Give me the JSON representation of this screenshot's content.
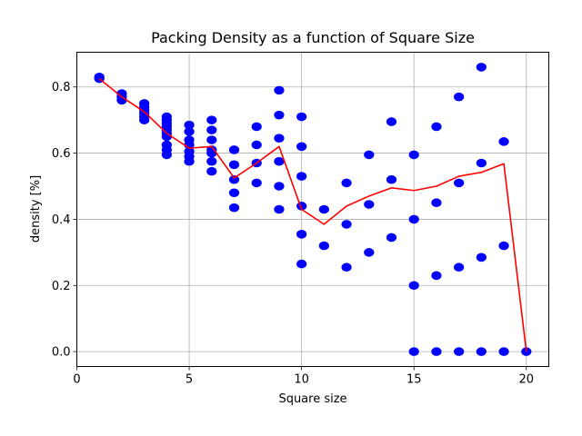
{
  "chart_data": {
    "type": "scatter",
    "title": "Packing Density as a function of Square Size",
    "xlabel": "Square size",
    "ylabel": "density [%]",
    "xlim": [
      0,
      21
    ],
    "ylim": [
      -0.045,
      0.905
    ],
    "xticks": [
      0,
      5,
      10,
      15,
      20
    ],
    "yticks": [
      0.0,
      0.2,
      0.4,
      0.6,
      0.8
    ],
    "grid": true,
    "legend": "none",
    "series": [
      {
        "kind": "scatter",
        "color": "#0000ff",
        "points": [
          [
            1,
            0.83
          ],
          [
            1,
            0.825
          ],
          [
            2,
            0.78
          ],
          [
            2,
            0.77
          ],
          [
            2,
            0.76
          ],
          [
            3,
            0.75
          ],
          [
            3,
            0.74
          ],
          [
            3,
            0.73
          ],
          [
            3,
            0.72
          ],
          [
            3,
            0.71
          ],
          [
            3,
            0.7
          ],
          [
            4,
            0.71
          ],
          [
            4,
            0.7
          ],
          [
            4,
            0.69
          ],
          [
            4,
            0.68
          ],
          [
            4,
            0.67
          ],
          [
            4,
            0.66
          ],
          [
            4,
            0.65
          ],
          [
            4,
            0.625
          ],
          [
            4,
            0.61
          ],
          [
            4,
            0.595
          ],
          [
            5,
            0.685
          ],
          [
            5,
            0.665
          ],
          [
            5,
            0.64
          ],
          [
            5,
            0.625
          ],
          [
            5,
            0.605
          ],
          [
            5,
            0.59
          ],
          [
            5,
            0.575
          ],
          [
            6,
            0.7
          ],
          [
            6,
            0.67
          ],
          [
            6,
            0.64
          ],
          [
            6,
            0.61
          ],
          [
            6,
            0.6
          ],
          [
            6,
            0.575
          ],
          [
            6,
            0.545
          ],
          [
            7,
            0.61
          ],
          [
            7,
            0.565
          ],
          [
            7,
            0.52
          ],
          [
            7,
            0.48
          ],
          [
            7,
            0.435
          ],
          [
            8,
            0.68
          ],
          [
            8,
            0.625
          ],
          [
            8,
            0.57
          ],
          [
            8,
            0.51
          ],
          [
            9,
            0.79
          ],
          [
            9,
            0.715
          ],
          [
            9,
            0.645
          ],
          [
            9,
            0.575
          ],
          [
            9,
            0.5
          ],
          [
            9,
            0.43
          ],
          [
            10,
            0.71
          ],
          [
            10,
            0.62
          ],
          [
            10,
            0.53
          ],
          [
            10,
            0.44
          ],
          [
            10,
            0.355
          ],
          [
            10,
            0.265
          ],
          [
            11,
            0.43
          ],
          [
            11,
            0.32
          ],
          [
            12,
            0.51
          ],
          [
            12,
            0.385
          ],
          [
            12,
            0.255
          ],
          [
            13,
            0.595
          ],
          [
            13,
            0.445
          ],
          [
            13,
            0.3
          ],
          [
            14,
            0.695
          ],
          [
            14,
            0.52
          ],
          [
            14,
            0.345
          ],
          [
            15,
            0.595
          ],
          [
            15,
            0.4
          ],
          [
            15,
            0.2
          ],
          [
            15,
            0.0
          ],
          [
            16,
            0.68
          ],
          [
            16,
            0.45
          ],
          [
            16,
            0.23
          ],
          [
            16,
            0.0
          ],
          [
            17,
            0.77
          ],
          [
            17,
            0.51
          ],
          [
            17,
            0.255
          ],
          [
            17,
            0.0
          ],
          [
            18,
            0.86
          ],
          [
            18,
            0.57
          ],
          [
            18,
            0.285
          ],
          [
            18,
            0.0
          ],
          [
            19,
            0.635
          ],
          [
            19,
            0.32
          ],
          [
            19,
            0.0
          ],
          [
            20,
            0.0
          ]
        ]
      },
      {
        "kind": "line",
        "color": "#ff0000",
        "x": [
          1,
          2,
          3,
          4,
          5,
          6,
          7,
          8,
          9,
          10,
          11,
          12,
          13,
          14,
          15,
          16,
          17,
          18,
          19,
          20
        ],
        "y": [
          0.825,
          0.77,
          0.725,
          0.66,
          0.615,
          0.62,
          0.525,
          0.57,
          0.62,
          0.43,
          0.385,
          0.44,
          0.47,
          0.495,
          0.487,
          0.5,
          0.53,
          0.542,
          0.568,
          0.0
        ]
      }
    ]
  }
}
